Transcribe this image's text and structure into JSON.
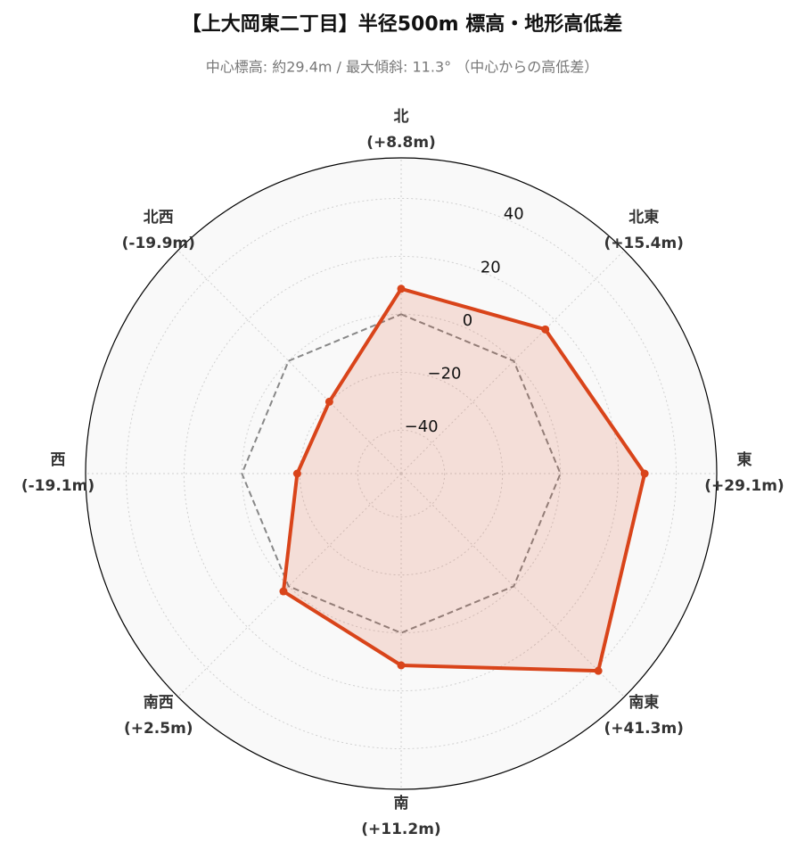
{
  "chart_data": {
    "type": "radar",
    "title": "【上大岡東二丁目】半径500m 標高・地形高低差",
    "subtitle": "中心標高: 約29.4m / 最大傾斜: 11.3° （中心からの高低差）",
    "categories": [
      "北",
      "北東",
      "東",
      "南東",
      "南",
      "南西",
      "西",
      "北西"
    ],
    "values": [
      8.8,
      15.4,
      29.1,
      41.3,
      11.2,
      2.5,
      -19.1,
      -19.9
    ],
    "value_labels": [
      "(+8.8m)",
      "(+15.4m)",
      "(+29.1m)",
      "(+41.3m)",
      "(+11.2m)",
      "(+2.5m)",
      "(-19.1m)",
      "(-19.9m)"
    ],
    "color": "#d9441a",
    "baseline": 0,
    "ylim": [
      -55,
      54
    ],
    "yticks": [
      {
        "value": -40,
        "label": "−40"
      },
      {
        "value": -20,
        "label": "−20"
      },
      0,
      20,
      40
    ],
    "grid": true
  }
}
